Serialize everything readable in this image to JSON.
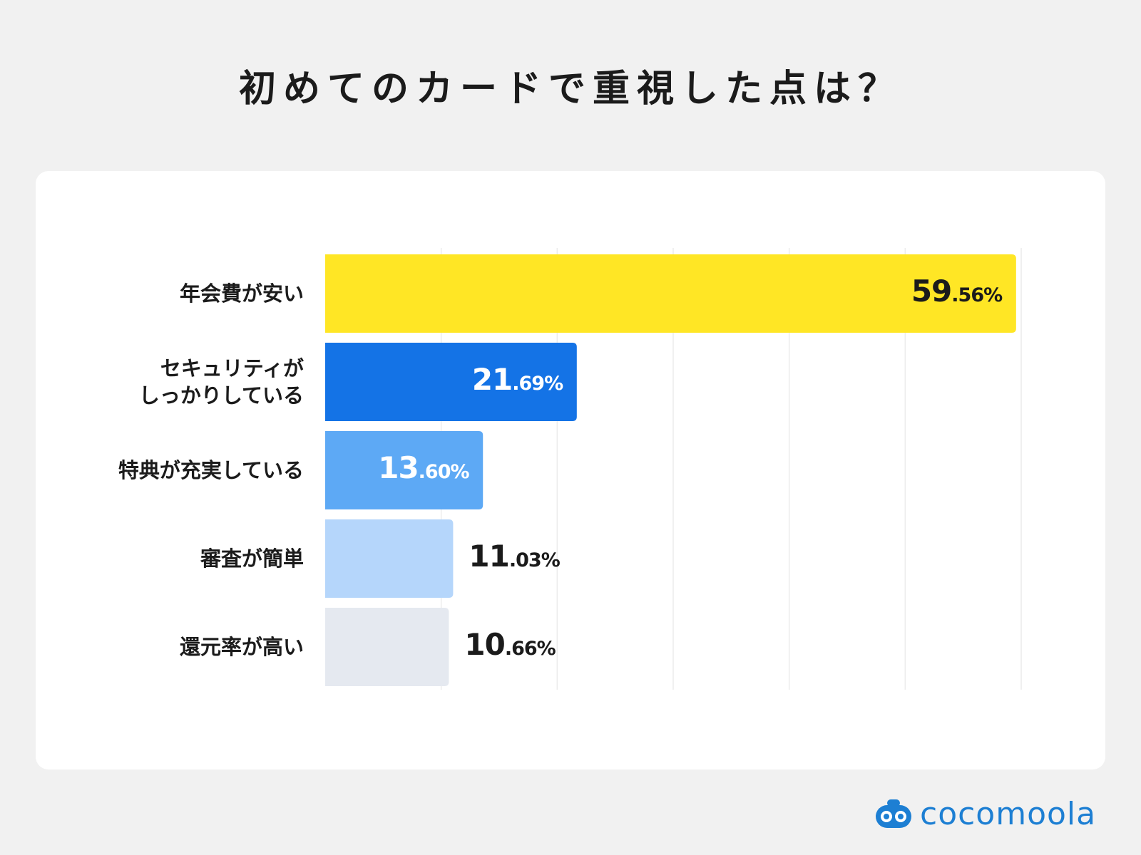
{
  "title": "初めてのカードで重視した点は？",
  "brand": {
    "name": "cocomoola",
    "icon": "cocomoola-logo-icon",
    "color": "#1d7fd3"
  },
  "chart_data": {
    "type": "bar",
    "orientation": "horizontal",
    "title": "初めてのカードで重視した点は？",
    "categories": [
      "年会費が安い",
      "セキュリティが\nしっかりしている",
      "特典が充実している",
      "審査が簡単",
      "還元率が高い"
    ],
    "values": [
      59.56,
      21.69,
      13.6,
      11.03,
      10.66
    ],
    "value_labels": [
      {
        "int": "59",
        "dec": ".56%"
      },
      {
        "int": "21",
        "dec": ".69%"
      },
      {
        "int": "13",
        "dec": ".60%"
      },
      {
        "int": "11",
        "dec": ".03%"
      },
      {
        "int": "10",
        "dec": ".66%"
      }
    ],
    "bar_colors": [
      "#ffe625",
      "#1473e6",
      "#5da9f5",
      "#b5d6fb",
      "#e5e9f0"
    ],
    "label_colors": [
      "#1b1b1b",
      "#ffffff",
      "#ffffff",
      "#1b1b1b",
      "#1b1b1b"
    ],
    "xlim": [
      0,
      60
    ],
    "grid": true,
    "unit": "%"
  }
}
